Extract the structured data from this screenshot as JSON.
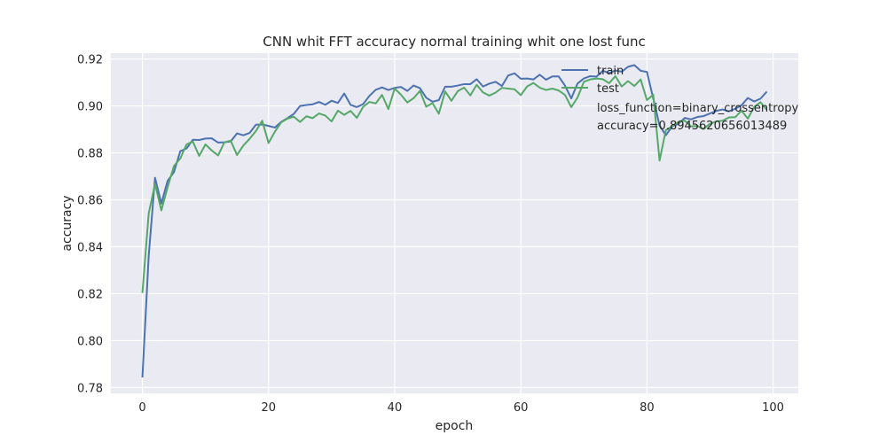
{
  "chart_data": {
    "type": "line",
    "title": "CNN whit FFT accuracy normal training whit one lost func",
    "xlabel": "epoch",
    "ylabel": "accuracy",
    "xlim": [
      -5,
      104
    ],
    "ylim": [
      0.7775,
      0.9225
    ],
    "xticks": [
      0,
      20,
      40,
      60,
      80,
      100
    ],
    "yticks": [
      0.78,
      0.8,
      0.82,
      0.84,
      0.86,
      0.88,
      0.9,
      0.92
    ],
    "ytick_labels": [
      "0.78",
      "0.80",
      "0.82",
      "0.84",
      "0.86",
      "0.88",
      "0.90",
      "0.92"
    ],
    "grid": true,
    "legend_position": "top-right",
    "series": [
      {
        "name": "train",
        "color": "#4c72b0",
        "values": [
          0.7843,
          0.8361,
          0.8694,
          0.8584,
          0.8681,
          0.8718,
          0.8807,
          0.8819,
          0.8856,
          0.8855,
          0.8861,
          0.8862,
          0.8844,
          0.8845,
          0.8849,
          0.8883,
          0.8875,
          0.8885,
          0.892,
          0.8921,
          0.8915,
          0.8908,
          0.8932,
          0.8948,
          0.8966,
          0.9,
          0.9004,
          0.9007,
          0.9017,
          0.9005,
          0.9022,
          0.9013,
          0.9053,
          0.9005,
          0.8995,
          0.9008,
          0.9043,
          0.9069,
          0.9079,
          0.9068,
          0.9077,
          0.9081,
          0.9064,
          0.9087,
          0.9076,
          0.9035,
          0.9018,
          0.9025,
          0.9082,
          0.9082,
          0.9087,
          0.9093,
          0.9093,
          0.9114,
          0.9083,
          0.9095,
          0.9103,
          0.9085,
          0.913,
          0.9139,
          0.9116,
          0.9117,
          0.9113,
          0.9133,
          0.9112,
          0.9126,
          0.9126,
          0.9087,
          0.9032,
          0.9096,
          0.9117,
          0.9127,
          0.9125,
          0.915,
          0.914,
          0.9151,
          0.9146,
          0.9167,
          0.9174,
          0.915,
          0.9145,
          0.9032,
          0.8917,
          0.8875,
          0.8913,
          0.8924,
          0.8949,
          0.8943,
          0.8953,
          0.8957,
          0.8968,
          0.8979,
          0.8985,
          0.8977,
          0.8988,
          0.9003,
          0.9034,
          0.9019,
          0.9031,
          0.9061
        ]
      },
      {
        "name": "test",
        "color": "#55a868",
        "values": [
          0.8203,
          0.8542,
          0.8668,
          0.8555,
          0.8654,
          0.8744,
          0.8776,
          0.8836,
          0.8848,
          0.8787,
          0.8836,
          0.881,
          0.8789,
          0.8845,
          0.8852,
          0.8791,
          0.8831,
          0.886,
          0.8893,
          0.8937,
          0.8842,
          0.889,
          0.893,
          0.8946,
          0.8954,
          0.8932,
          0.8956,
          0.8948,
          0.8968,
          0.8959,
          0.8934,
          0.898,
          0.8962,
          0.8979,
          0.8949,
          0.8996,
          0.9017,
          0.9011,
          0.9047,
          0.8987,
          0.9074,
          0.9048,
          0.9015,
          0.9033,
          0.9064,
          0.8997,
          0.9012,
          0.8967,
          0.9062,
          0.9022,
          0.9063,
          0.9078,
          0.9045,
          0.909,
          0.9058,
          0.9044,
          0.9057,
          0.9077,
          0.9074,
          0.9071,
          0.9046,
          0.9083,
          0.9098,
          0.9078,
          0.9068,
          0.9074,
          0.9066,
          0.9047,
          0.8995,
          0.9036,
          0.9103,
          0.9113,
          0.9117,
          0.9114,
          0.9097,
          0.9127,
          0.9083,
          0.9106,
          0.9085,
          0.9113,
          0.9025,
          0.9048,
          0.8767,
          0.8897,
          0.8913,
          0.8932,
          0.8937,
          0.8913,
          0.8915,
          0.8902,
          0.8924,
          0.8934,
          0.8937,
          0.8951,
          0.8952,
          0.898,
          0.8946,
          0.8996,
          0.9016,
          0.8984
        ]
      }
    ],
    "annotations": [
      "loss_function=binary_crossentropy",
      "accuracy=0.8945620656013489"
    ]
  }
}
